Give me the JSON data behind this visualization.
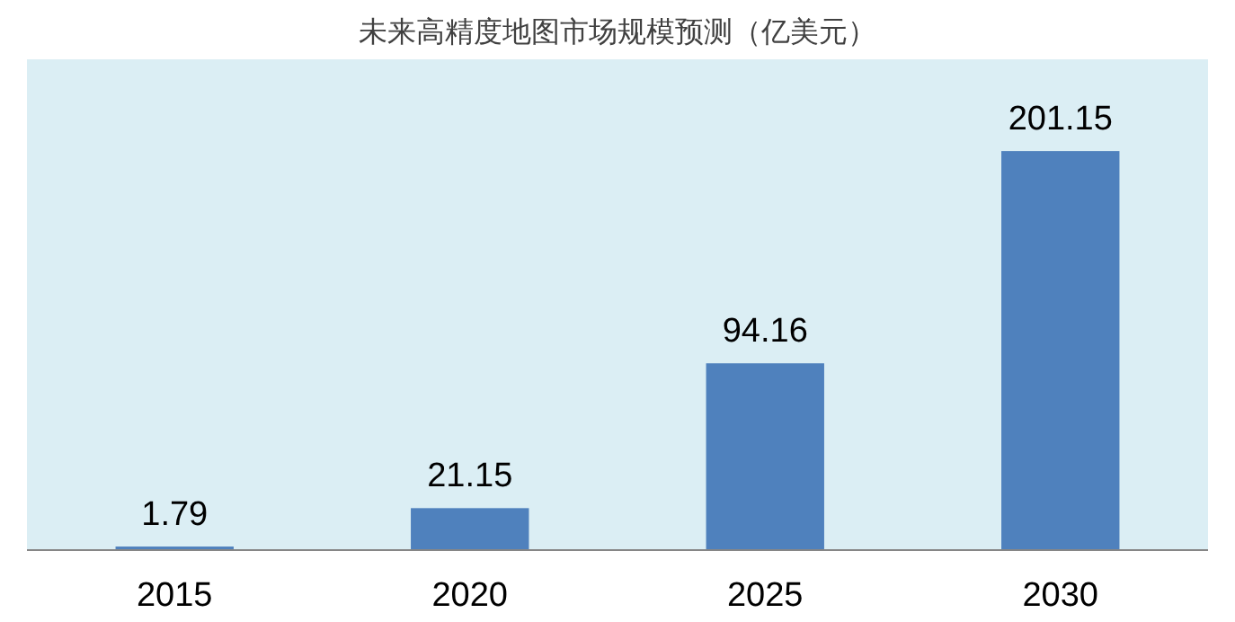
{
  "chart_data": {
    "type": "bar",
    "title": "未来高精度地图市场规模预测（亿美元）",
    "categories": [
      "2015",
      "2020",
      "2025",
      "2030"
    ],
    "values": [
      1.79,
      21.15,
      94.16,
      201.15
    ],
    "color": "#4f81bd",
    "data_labels": true
  }
}
